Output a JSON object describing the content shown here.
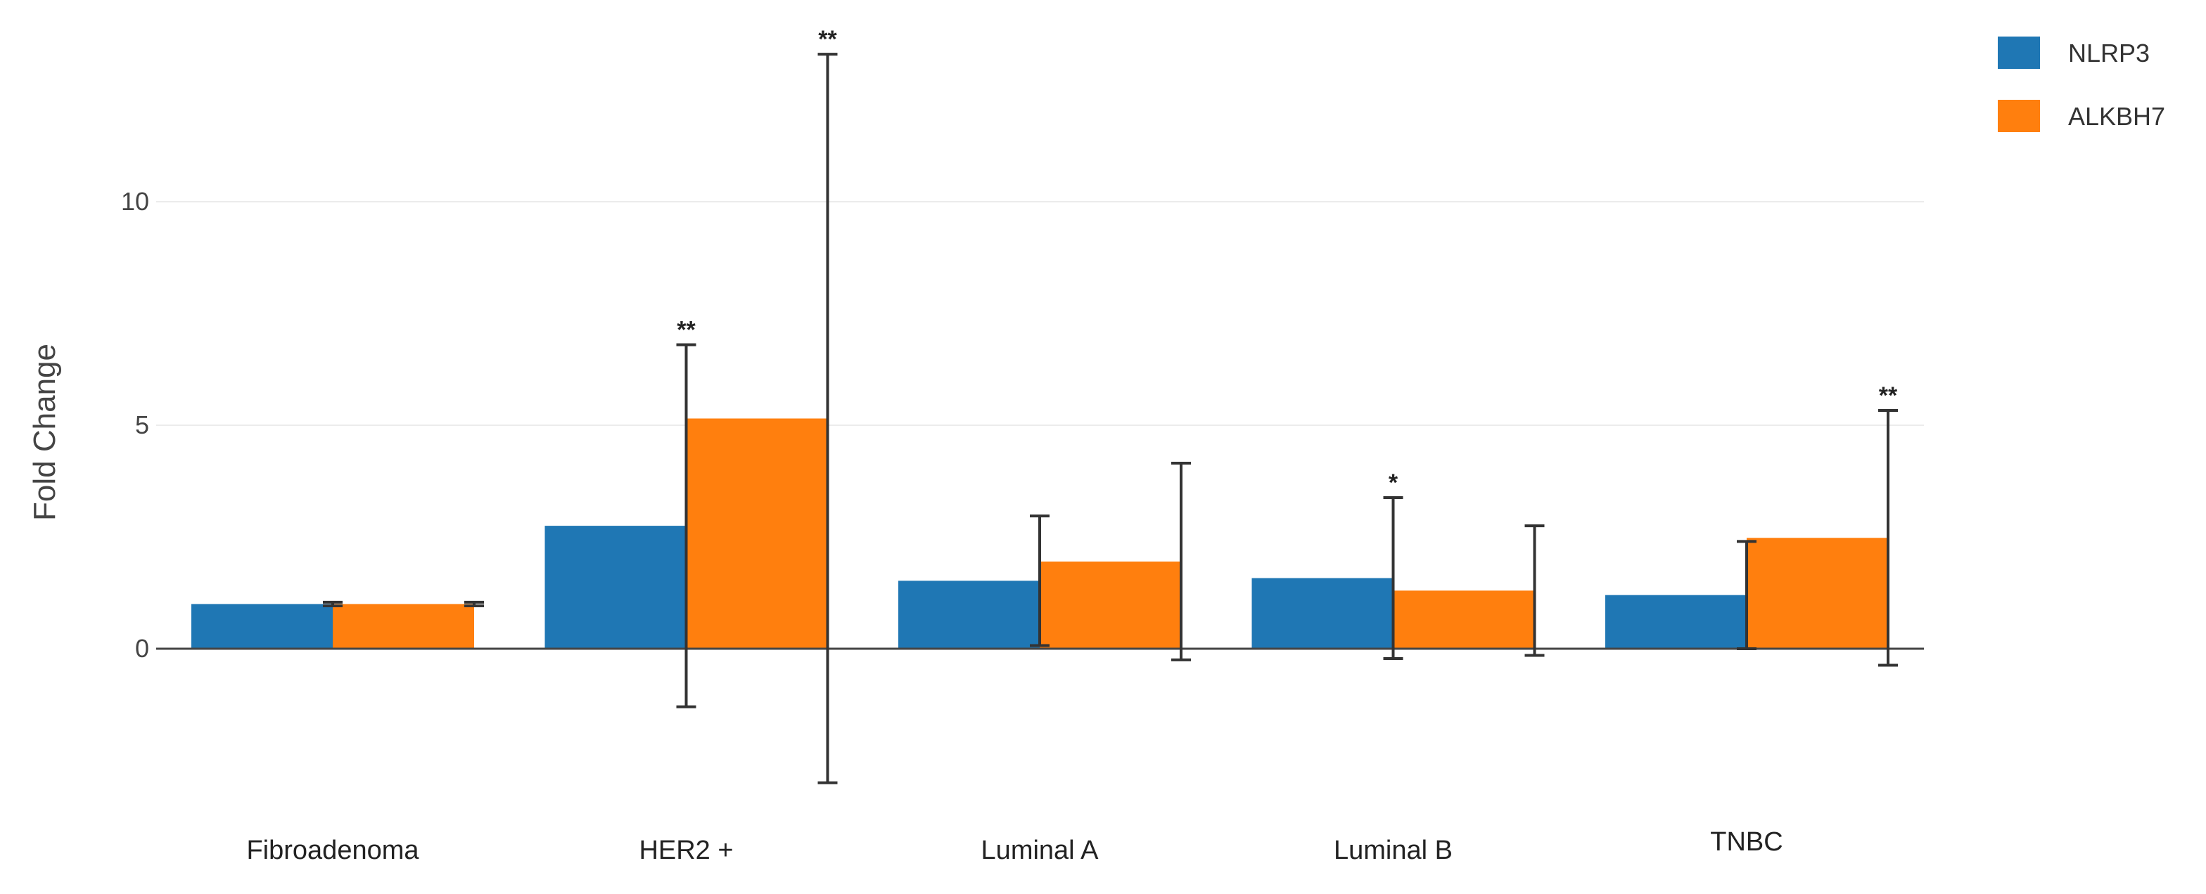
{
  "chart_data": {
    "type": "bar",
    "title": "",
    "xlabel": "",
    "ylabel": "Fold Change",
    "categories": [
      "Fibroadenoma",
      "HER2 +",
      "Luminal A",
      "Luminal B",
      "TNBC"
    ],
    "series": [
      {
        "name": "NLRP3",
        "color": "#1f77b4",
        "values": [
          1.0,
          2.75,
          1.52,
          1.58,
          1.2
        ],
        "error": [
          0.04,
          4.05,
          1.45,
          1.8,
          1.2
        ],
        "significance": [
          "",
          "**",
          "",
          "*",
          ""
        ]
      },
      {
        "name": "ALKBH7",
        "color": "#ff7f0e",
        "values": [
          1.0,
          5.15,
          1.95,
          1.3,
          2.48
        ],
        "error": [
          0.04,
          8.15,
          2.2,
          1.45,
          2.85
        ],
        "significance": [
          "",
          "**",
          "",
          "",
          "**"
        ]
      }
    ],
    "y_ticks": [
      0,
      5,
      10
    ],
    "ylim": [
      -3.6,
      14.2
    ],
    "grid": true,
    "legend_position": "top-right"
  }
}
